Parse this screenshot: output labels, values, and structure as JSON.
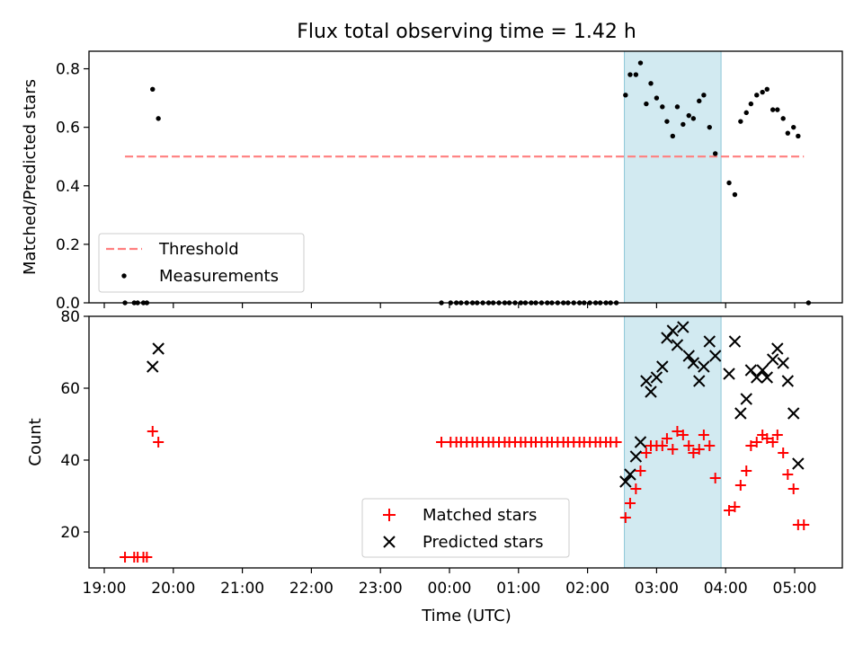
{
  "title": "Flux total observing time = 1.42 h",
  "chart_data": [
    {
      "type": "scatter",
      "panel": "top",
      "ylabel": "Matched/Predicted stars",
      "xlabel": "",
      "ylim": [
        0.0,
        0.86
      ],
      "yticks": [
        0.0,
        0.2,
        0.4,
        0.6,
        0.8
      ],
      "ytick_labels": [
        "0.0",
        "0.2",
        "0.4",
        "0.6",
        "0.8"
      ],
      "grid": false,
      "legend_position": "lower-left",
      "legend": [
        {
          "label": "Threshold",
          "style": "dashed-line",
          "color": "#ff7f7f"
        },
        {
          "label": "Measurements",
          "style": "dot",
          "color": "#000000"
        }
      ],
      "threshold": {
        "y": 0.5,
        "x_start": "19:18",
        "x_end": "05:08",
        "color": "#ff7f7f"
      },
      "shaded_span": {
        "x_start": "02:32",
        "x_end": "03:56",
        "color": "#add8e6"
      },
      "series": [
        {
          "name": "Measurements",
          "points": [
            {
              "x": "19:18",
              "y": 0.0
            },
            {
              "x": "19:26",
              "y": 0.0
            },
            {
              "x": "19:29",
              "y": 0.0
            },
            {
              "x": "19:34",
              "y": 0.0
            },
            {
              "x": "19:37",
              "y": 0.0
            },
            {
              "x": "19:42",
              "y": 0.73
            },
            {
              "x": "19:47",
              "y": 0.63
            },
            {
              "x": "23:53",
              "y": 0.0
            },
            {
              "x": "00:01",
              "y": 0.0
            },
            {
              "x": "00:06",
              "y": 0.0
            },
            {
              "x": "00:10",
              "y": 0.0
            },
            {
              "x": "00:15",
              "y": 0.0
            },
            {
              "x": "00:20",
              "y": 0.0
            },
            {
              "x": "00:24",
              "y": 0.0
            },
            {
              "x": "00:29",
              "y": 0.0
            },
            {
              "x": "00:34",
              "y": 0.0
            },
            {
              "x": "00:38",
              "y": 0.0
            },
            {
              "x": "00:43",
              "y": 0.0
            },
            {
              "x": "00:48",
              "y": 0.0
            },
            {
              "x": "00:52",
              "y": 0.0
            },
            {
              "x": "00:57",
              "y": 0.0
            },
            {
              "x": "01:02",
              "y": 0.0
            },
            {
              "x": "01:06",
              "y": 0.0
            },
            {
              "x": "01:11",
              "y": 0.0
            },
            {
              "x": "01:15",
              "y": 0.0
            },
            {
              "x": "01:20",
              "y": 0.0
            },
            {
              "x": "01:25",
              "y": 0.0
            },
            {
              "x": "01:29",
              "y": 0.0
            },
            {
              "x": "01:34",
              "y": 0.0
            },
            {
              "x": "01:39",
              "y": 0.0
            },
            {
              "x": "01:43",
              "y": 0.0
            },
            {
              "x": "01:48",
              "y": 0.0
            },
            {
              "x": "01:53",
              "y": 0.0
            },
            {
              "x": "01:57",
              "y": 0.0
            },
            {
              "x": "02:02",
              "y": 0.0
            },
            {
              "x": "02:07",
              "y": 0.0
            },
            {
              "x": "02:11",
              "y": 0.0
            },
            {
              "x": "02:16",
              "y": 0.0
            },
            {
              "x": "02:20",
              "y": 0.0
            },
            {
              "x": "02:25",
              "y": 0.0
            },
            {
              "x": "02:33",
              "y": 0.71
            },
            {
              "x": "02:37",
              "y": 0.78
            },
            {
              "x": "02:42",
              "y": 0.78
            },
            {
              "x": "02:46",
              "y": 0.82
            },
            {
              "x": "02:51",
              "y": 0.68
            },
            {
              "x": "02:55",
              "y": 0.75
            },
            {
              "x": "03:00",
              "y": 0.7
            },
            {
              "x": "03:05",
              "y": 0.67
            },
            {
              "x": "03:09",
              "y": 0.62
            },
            {
              "x": "03:14",
              "y": 0.57
            },
            {
              "x": "03:18",
              "y": 0.67
            },
            {
              "x": "03:23",
              "y": 0.61
            },
            {
              "x": "03:28",
              "y": 0.64
            },
            {
              "x": "03:32",
              "y": 0.63
            },
            {
              "x": "03:37",
              "y": 0.69
            },
            {
              "x": "03:41",
              "y": 0.71
            },
            {
              "x": "03:46",
              "y": 0.6
            },
            {
              "x": "03:51",
              "y": 0.51
            },
            {
              "x": "04:03",
              "y": 0.41
            },
            {
              "x": "04:08",
              "y": 0.37
            },
            {
              "x": "04:13",
              "y": 0.62
            },
            {
              "x": "04:18",
              "y": 0.65
            },
            {
              "x": "04:22",
              "y": 0.68
            },
            {
              "x": "04:27",
              "y": 0.71
            },
            {
              "x": "04:32",
              "y": 0.72
            },
            {
              "x": "04:36",
              "y": 0.73
            },
            {
              "x": "04:41",
              "y": 0.66
            },
            {
              "x": "04:45",
              "y": 0.66
            },
            {
              "x": "04:50",
              "y": 0.63
            },
            {
              "x": "04:54",
              "y": 0.58
            },
            {
              "x": "04:59",
              "y": 0.6
            },
            {
              "x": "05:03",
              "y": 0.57
            },
            {
              "x": "05:12",
              "y": 0.0
            }
          ]
        }
      ]
    },
    {
      "type": "scatter",
      "panel": "bottom",
      "xlabel": "Time (UTC)",
      "ylabel": "Count",
      "ylim": [
        10,
        80
      ],
      "yticks": [
        20,
        40,
        60,
        80
      ],
      "ytick_labels": [
        "20",
        "40",
        "60",
        "80"
      ],
      "x_tick_labels": [
        "19:00",
        "20:00",
        "21:00",
        "22:00",
        "23:00",
        "00:00",
        "01:00",
        "02:00",
        "03:00",
        "04:00",
        "05:00"
      ],
      "grid": false,
      "legend_position": "bottom-center",
      "shaded_span": {
        "x_start": "02:32",
        "x_end": "03:56",
        "color": "#add8e6"
      },
      "series": [
        {
          "name": "Matched stars",
          "marker": "plus",
          "color": "#ff0000",
          "points": [
            {
              "x": "19:18",
              "y": 13
            },
            {
              "x": "19:26",
              "y": 13
            },
            {
              "x": "19:29",
              "y": 13
            },
            {
              "x": "19:34",
              "y": 13
            },
            {
              "x": "19:37",
              "y": 13
            },
            {
              "x": "19:42",
              "y": 48
            },
            {
              "x": "19:47",
              "y": 45
            },
            {
              "x": "23:53",
              "y": 45
            },
            {
              "x": "00:01",
              "y": 45
            },
            {
              "x": "00:06",
              "y": 45
            },
            {
              "x": "00:10",
              "y": 45
            },
            {
              "x": "00:15",
              "y": 45
            },
            {
              "x": "00:20",
              "y": 45
            },
            {
              "x": "00:24",
              "y": 45
            },
            {
              "x": "00:29",
              "y": 45
            },
            {
              "x": "00:34",
              "y": 45
            },
            {
              "x": "00:38",
              "y": 45
            },
            {
              "x": "00:43",
              "y": 45
            },
            {
              "x": "00:48",
              "y": 45
            },
            {
              "x": "00:52",
              "y": 45
            },
            {
              "x": "00:57",
              "y": 45
            },
            {
              "x": "01:02",
              "y": 45
            },
            {
              "x": "01:06",
              "y": 45
            },
            {
              "x": "01:11",
              "y": 45
            },
            {
              "x": "01:15",
              "y": 45
            },
            {
              "x": "01:20",
              "y": 45
            },
            {
              "x": "01:25",
              "y": 45
            },
            {
              "x": "01:29",
              "y": 45
            },
            {
              "x": "01:34",
              "y": 45
            },
            {
              "x": "01:39",
              "y": 45
            },
            {
              "x": "01:43",
              "y": 45
            },
            {
              "x": "01:48",
              "y": 45
            },
            {
              "x": "01:53",
              "y": 45
            },
            {
              "x": "01:57",
              "y": 45
            },
            {
              "x": "02:02",
              "y": 45
            },
            {
              "x": "02:07",
              "y": 45
            },
            {
              "x": "02:11",
              "y": 45
            },
            {
              "x": "02:16",
              "y": 45
            },
            {
              "x": "02:20",
              "y": 45
            },
            {
              "x": "02:25",
              "y": 45
            },
            {
              "x": "02:33",
              "y": 24
            },
            {
              "x": "02:37",
              "y": 28
            },
            {
              "x": "02:42",
              "y": 32
            },
            {
              "x": "02:46",
              "y": 37
            },
            {
              "x": "02:51",
              "y": 42
            },
            {
              "x": "02:55",
              "y": 44
            },
            {
              "x": "03:00",
              "y": 44
            },
            {
              "x": "03:05",
              "y": 44
            },
            {
              "x": "03:09",
              "y": 46
            },
            {
              "x": "03:14",
              "y": 43
            },
            {
              "x": "03:18",
              "y": 48
            },
            {
              "x": "03:23",
              "y": 47
            },
            {
              "x": "03:28",
              "y": 44
            },
            {
              "x": "03:32",
              "y": 42
            },
            {
              "x": "03:37",
              "y": 43
            },
            {
              "x": "03:41",
              "y": 47
            },
            {
              "x": "03:46",
              "y": 44
            },
            {
              "x": "03:51",
              "y": 35
            },
            {
              "x": "04:03",
              "y": 26
            },
            {
              "x": "04:08",
              "y": 27
            },
            {
              "x": "04:13",
              "y": 33
            },
            {
              "x": "04:18",
              "y": 37
            },
            {
              "x": "04:22",
              "y": 44
            },
            {
              "x": "04:27",
              "y": 45
            },
            {
              "x": "04:32",
              "y": 47
            },
            {
              "x": "04:36",
              "y": 46
            },
            {
              "x": "04:41",
              "y": 45
            },
            {
              "x": "04:45",
              "y": 47
            },
            {
              "x": "04:50",
              "y": 42
            },
            {
              "x": "04:54",
              "y": 36
            },
            {
              "x": "04:59",
              "y": 32
            },
            {
              "x": "05:03",
              "y": 22
            },
            {
              "x": "05:08",
              "y": 22
            }
          ]
        },
        {
          "name": "Predicted stars",
          "marker": "x",
          "color": "#000000",
          "points": [
            {
              "x": "19:42",
              "y": 66
            },
            {
              "x": "19:47",
              "y": 71
            },
            {
              "x": "02:33",
              "y": 34
            },
            {
              "x": "02:37",
              "y": 36
            },
            {
              "x": "02:42",
              "y": 41
            },
            {
              "x": "02:46",
              "y": 45
            },
            {
              "x": "02:51",
              "y": 62
            },
            {
              "x": "02:55",
              "y": 59
            },
            {
              "x": "03:00",
              "y": 63
            },
            {
              "x": "03:05",
              "y": 66
            },
            {
              "x": "03:09",
              "y": 74
            },
            {
              "x": "03:14",
              "y": 76
            },
            {
              "x": "03:18",
              "y": 72
            },
            {
              "x": "03:23",
              "y": 77
            },
            {
              "x": "03:28",
              "y": 69
            },
            {
              "x": "03:32",
              "y": 67
            },
            {
              "x": "03:37",
              "y": 62
            },
            {
              "x": "03:41",
              "y": 66
            },
            {
              "x": "03:46",
              "y": 73
            },
            {
              "x": "03:51",
              "y": 69
            },
            {
              "x": "04:03",
              "y": 64
            },
            {
              "x": "04:08",
              "y": 73
            },
            {
              "x": "04:13",
              "y": 53
            },
            {
              "x": "04:18",
              "y": 57
            },
            {
              "x": "04:22",
              "y": 65
            },
            {
              "x": "04:27",
              "y": 63
            },
            {
              "x": "04:32",
              "y": 65
            },
            {
              "x": "04:36",
              "y": 63
            },
            {
              "x": "04:41",
              "y": 68
            },
            {
              "x": "04:45",
              "y": 71
            },
            {
              "x": "04:50",
              "y": 67
            },
            {
              "x": "04:54",
              "y": 62
            },
            {
              "x": "04:59",
              "y": 53
            },
            {
              "x": "05:03",
              "y": 39
            }
          ]
        }
      ]
    }
  ]
}
